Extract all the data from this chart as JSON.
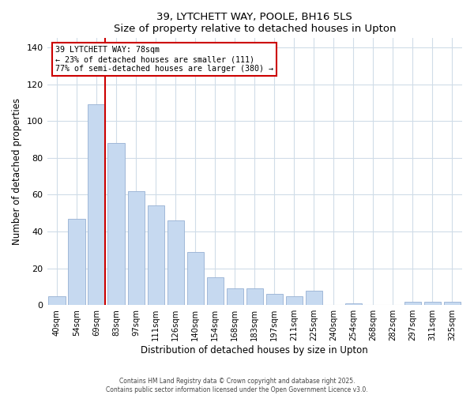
{
  "title": "39, LYTCHETT WAY, POOLE, BH16 5LS",
  "subtitle": "Size of property relative to detached houses in Upton",
  "xlabel": "Distribution of detached houses by size in Upton",
  "ylabel": "Number of detached properties",
  "bar_labels": [
    "40sqm",
    "54sqm",
    "69sqm",
    "83sqm",
    "97sqm",
    "111sqm",
    "126sqm",
    "140sqm",
    "154sqm",
    "168sqm",
    "183sqm",
    "197sqm",
    "211sqm",
    "225sqm",
    "240sqm",
    "254sqm",
    "268sqm",
    "282sqm",
    "297sqm",
    "311sqm",
    "325sqm"
  ],
  "bar_values": [
    5,
    47,
    109,
    88,
    62,
    54,
    46,
    29,
    15,
    9,
    9,
    6,
    5,
    8,
    0,
    1,
    0,
    0,
    2,
    2,
    2
  ],
  "bar_color": "#c6d9f0",
  "bar_edge_color": "#a0b8d8",
  "property_line_x": 2.43,
  "property_line_label": "39 LYTCHETT WAY: 78sqm",
  "annotation_smaller": "← 23% of detached houses are smaller (111)",
  "annotation_larger": "77% of semi-detached houses are larger (380) →",
  "annotation_box_color": "#ffffff",
  "annotation_box_edge_color": "#cc0000",
  "property_line_color": "#cc0000",
  "ylim": [
    0,
    145
  ],
  "yticks": [
    0,
    20,
    40,
    60,
    80,
    100,
    120,
    140
  ],
  "footer1": "Contains HM Land Registry data © Crown copyright and database right 2025.",
  "footer2": "Contains public sector information licensed under the Open Government Licence v3.0.",
  "bg_color": "#ffffff",
  "grid_color": "#d0dce8"
}
